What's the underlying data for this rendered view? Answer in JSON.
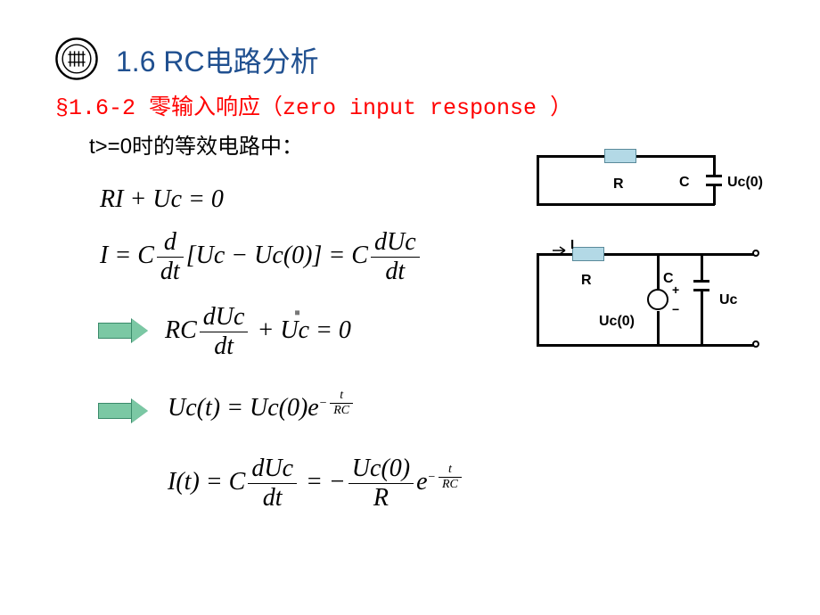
{
  "colors": {
    "title": "#205090",
    "subtitle": "#ff0000",
    "arrow_fill": "#7bc8a4",
    "arrow_border": "#3a8a6a",
    "resistor_fill": "#b3d9e6",
    "resistor_border": "#5a8a9a"
  },
  "title": "1.6 RC电路分析",
  "subtitle": "§1.6-2 零输入响应（zero input response ）",
  "body_text": "t>=0时的等效电路中：",
  "equations": {
    "eq1_html": "<span class='eq-block'><i>RI</i> + <i>Uc</i> = 0</span>",
    "eq2_html": "<span class='eq-block'><i>I</i> = <i>C</i><span class='frac'><span class='num'><i>d</i></span><span class='den'><i>dt</i></span></span>[<i>Uc</i> &minus; <i>Uc</i>(0)] = <i>C</i><span class='frac'><span class='num'><i>dUc</i></span><span class='den'><i>dt</i></span></span></span>",
    "eq3_html": "<span class='eq-block'><i>RC</i><span class='frac'><span class='num'><i>dUc</i></span><span class='den'><i>dt</i></span></span> + <i>Uc</i> = 0</span>",
    "eq4_html": "<span class='eq-block'><i>Uc</i>(<i>t</i>) = <i>Uc</i>(0)<i>e</i><sup><span class='eq-sm'>&minus;<span class='frac'><span class='num'>t</span><span class='den'>RC</span></span></span></sup></span>",
    "eq5_html": "<span class='eq-block'><i>I</i>(<i>t</i>) = <i>C</i><span class='frac'><span class='num'><i>dUc</i></span><span class='den'><i>dt</i></span></span> = &minus;<span class='frac'><span class='num'><i>Uc</i>(0)</span><span class='den'><i>R</i></span></span><i>e</i><sup><span class='eq-sm'>&minus;<span class='frac'><span class='num'>t</span><span class='den'>RC</span></span></span></sup></span>"
  },
  "circuit1": {
    "R": "R",
    "C": "C",
    "Uc0": "Uc(0)"
  },
  "circuit2": {
    "I": "I",
    "R": "R",
    "C": "C",
    "Uc0": "Uc(0)",
    "Uc": "Uc",
    "plus": "+",
    "minus": "−"
  },
  "dot": "▪"
}
